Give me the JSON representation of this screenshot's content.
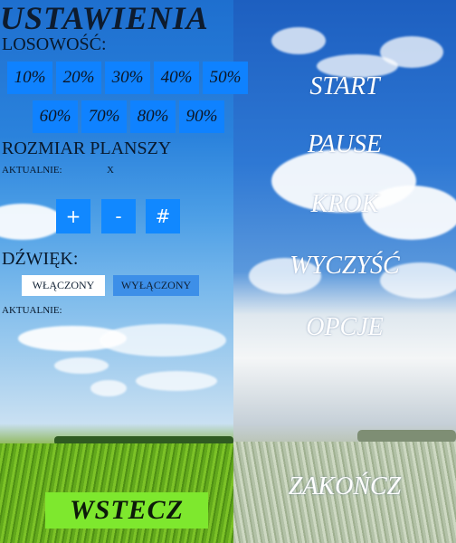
{
  "title": "USTAWIENIA",
  "randomness": {
    "label": "LOSOWOŚĆ:",
    "options": [
      "10%",
      "20%",
      "30%",
      "40%",
      "50%",
      "60%",
      "70%",
      "80%",
      "90%"
    ]
  },
  "board_size": {
    "label": "ROZMIAR PLANSZY",
    "current_label": "AKTUALNIE:",
    "current_value": "X",
    "buttons": [
      "+",
      "-",
      "#"
    ]
  },
  "sound": {
    "label": "DŹWIĘK:",
    "on_label": "WŁĄCZONY",
    "off_label": "WYŁĄCZONY",
    "current_label": "AKTUALNIE:"
  },
  "back_label": "WSTECZ",
  "menu": {
    "start": "START",
    "pause": "PAUSE",
    "step": "KROK",
    "clear": "WYCZYŚĆ",
    "options": "OPCJE",
    "quit": "ZAKOŃCZ"
  },
  "colors": {
    "button_blue": "#0f82ff",
    "back_green": "#7ee82e"
  }
}
